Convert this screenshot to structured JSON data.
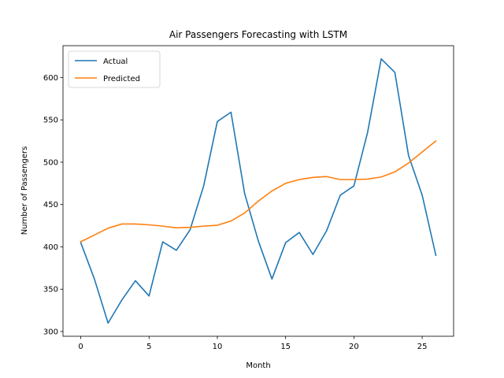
{
  "chart_data": {
    "type": "line",
    "title": "Air Passengers Forecasting with LSTM",
    "xlabel": "Month",
    "ylabel": "Number of Passengers",
    "xlim": [
      -1.3,
      27.3
    ],
    "ylim": [
      294.4,
      637.6
    ],
    "xticks": [
      0,
      5,
      10,
      15,
      20,
      25
    ],
    "yticks": [
      300,
      350,
      400,
      450,
      500,
      550,
      600
    ],
    "grid": false,
    "legend_position": "upper left",
    "x": [
      0,
      1,
      2,
      3,
      4,
      5,
      6,
      7,
      8,
      9,
      10,
      11,
      12,
      13,
      14,
      15,
      16,
      17,
      18,
      19,
      20,
      21,
      22,
      23,
      24,
      25,
      26
    ],
    "series": [
      {
        "name": "Actual",
        "color": "#1f77b4",
        "values": [
          405,
          362,
          310,
          337,
          360,
          342,
          406,
          396,
          420,
          472,
          548,
          559,
          463,
          407,
          362,
          405,
          417,
          391,
          419,
          461,
          472,
          535,
          622,
          606,
          508,
          461,
          390
        ]
      },
      {
        "name": "Predicted",
        "color": "#ff7f0e",
        "values": [
          406,
          414,
          422,
          427,
          427,
          426,
          424.5,
          422.5,
          423,
          424.5,
          425.5,
          430.5,
          440,
          454,
          466,
          475,
          479.5,
          482,
          483,
          479.5,
          479.5,
          480,
          482.5,
          488.5,
          499,
          512,
          525
        ]
      }
    ]
  }
}
